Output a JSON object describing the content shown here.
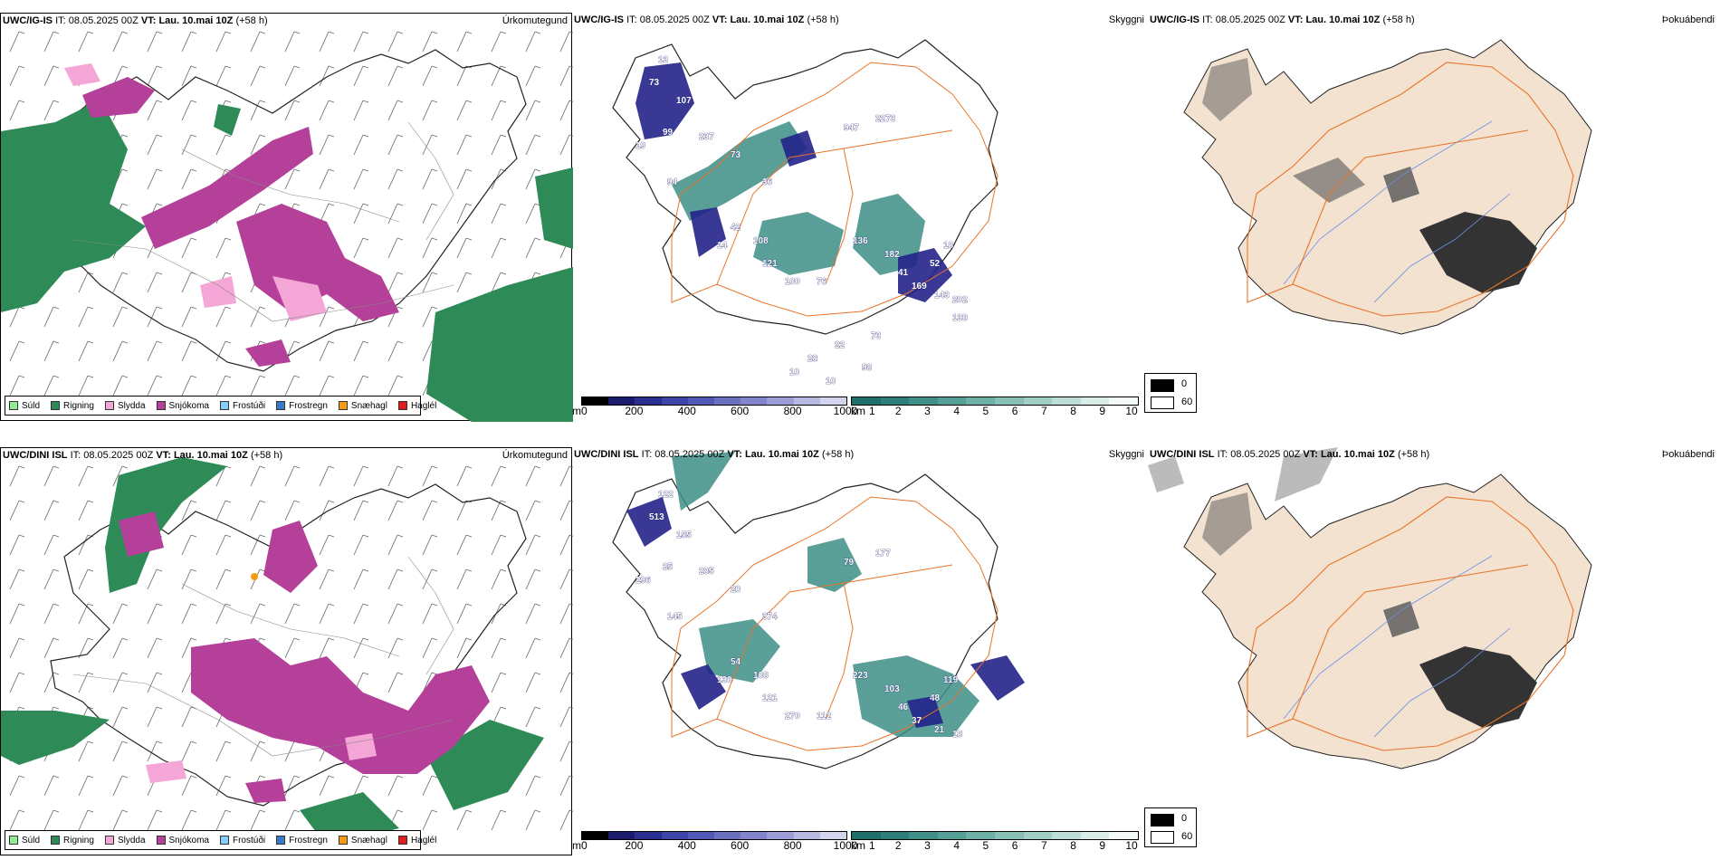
{
  "rows": [
    {
      "model": "UWC/IG-IS",
      "it_label": "IT:",
      "it_value": "08.05.2025 00Z",
      "vt_label": "VT:",
      "vt_value": "Lau. 10.mai 10Z",
      "lead": "(+58 h)",
      "peaks": [
        "13",
        "107",
        "73",
        "99",
        "237",
        "19",
        "94",
        "73",
        "947",
        "2273",
        "36",
        "42",
        "108",
        "14",
        "121",
        "100",
        "76",
        "136",
        "182",
        "41",
        "52",
        "18",
        "169",
        "143",
        "202",
        "138",
        "73",
        "22",
        "28",
        "10",
        "10",
        "98"
      ]
    },
    {
      "model": "UWC/DINI ISL",
      "it_label": "IT:",
      "it_value": "08.05.2025 00Z",
      "vt_label": "VT:",
      "vt_value": "Lau. 10.mai 10Z",
      "lead": "(+58 h)",
      "peaks": [
        "122",
        "155",
        "513",
        "25",
        "285",
        "296",
        "145",
        "20",
        "79",
        "177",
        "374",
        "54",
        "108",
        "130",
        "121",
        "270",
        "112",
        "223",
        "103",
        "46",
        "48",
        "119",
        "37",
        "21",
        "18"
      ]
    }
  ],
  "panel_titles": {
    "precip_type": "Úrkomutegund",
    "visibility": "Skyggni",
    "fog": "Þokuábendi"
  },
  "precip_legend": [
    {
      "label": "Súld",
      "color": "#90ee90"
    },
    {
      "label": "Rigning",
      "color": "#2e8b57"
    },
    {
      "label": "Slydda",
      "color": "#f4a6d7"
    },
    {
      "label": "Snjókoma",
      "color": "#b5409a"
    },
    {
      "label": "Frostúði",
      "color": "#87cefa"
    },
    {
      "label": "Frostregn",
      "color": "#3a78c2"
    },
    {
      "label": "Snæhagl",
      "color": "#f39c12"
    },
    {
      "label": "Haglél",
      "color": "#e41a1c"
    }
  ],
  "cbar_m": {
    "unit": "m",
    "ticks": [
      "0",
      "200",
      "400",
      "600",
      "800",
      "1000"
    ],
    "colors": [
      "#000000",
      "#1a1a6e",
      "#2b2f8f",
      "#3d46a8",
      "#5158b5",
      "#6a6fc2",
      "#8285cc",
      "#9c9fd7",
      "#b7b9e2",
      "#d2d3ec"
    ]
  },
  "cbar_km": {
    "unit": "km",
    "ticks": [
      "1",
      "2",
      "3",
      "4",
      "5",
      "6",
      "7",
      "8",
      "9",
      "10"
    ],
    "colors": [
      "#1f6f6a",
      "#2c7f78",
      "#3d8f87",
      "#55a096",
      "#6db0a6",
      "#86c0b6",
      "#a1cfc6",
      "#bcded6",
      "#d8ede8",
      "#f2f9f7"
    ]
  },
  "fog_key": {
    "values": [
      "0",
      "60"
    ],
    "colors": [
      "#000000",
      "#ffffff"
    ]
  },
  "colors": {
    "land": "#f4e2d1",
    "roads": "#e8742a",
    "rivers": "#6b8fe6",
    "coast": "#000000",
    "snow": "#b5409a",
    "rain": "#2e8b57",
    "sleet": "#f4a6d7",
    "vis": "#3d8f87",
    "visdark": "#23238a"
  }
}
